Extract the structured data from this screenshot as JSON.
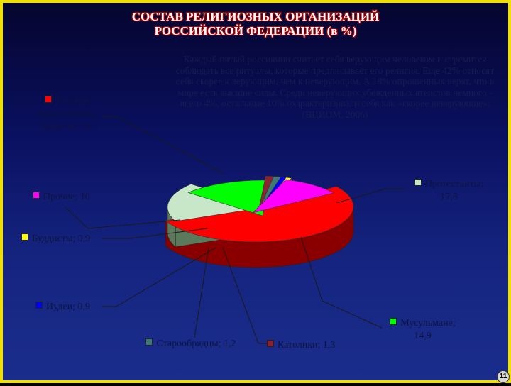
{
  "title": {
    "line1": "СОСТАВ РЕЛИГИОЗНЫХ ОРГАНИЗАЦИЙ",
    "line2": "РОССИЙСКОЙ ФЕДЕРАЦИИ (в %)"
  },
  "note": "Каждый пятый россиянин считает себя верующим человеком и стремится соблюдать все ритуалы, которые предписывает его религия. Еще 42% относят себя скорее к верующим, чем к неверующим. А 18% опрошенных верят, что в мире есть высшие силы. Среди неверующих убежденных атеистов немного - всего 4%, остальные 10% охарактеризовали себя как «скорее неверующие». (ВЦИОМ, 2006)",
  "slide_number": "11",
  "chart_data": {
    "type": "pie",
    "style": "3d exploded",
    "title": "СОСТАВ РЕЛИГИОЗНЫХ ОРГАНИЗАЦИЙ РОССИЙСКОЙ ФЕДЕРАЦИИ (в %)",
    "slices": [
      {
        "label": "Русская Православная Церковь; 53",
        "value": 53,
        "color": "#ff0000",
        "side": "#8a0000"
      },
      {
        "label": "Протестанты; 17,8",
        "value": 17.8,
        "color": "#c8e6c8",
        "side": "#5b7a5b"
      },
      {
        "label": "Мусульмане; 14,9",
        "value": 14.9,
        "color": "#00ff00",
        "side": "#127a12"
      },
      {
        "label": "Католики; 1,3",
        "value": 1.3,
        "color": "#8b2232",
        "side": "#4e1119"
      },
      {
        "label": "Старообрядцы; 1,2",
        "value": 1.2,
        "color": "#3a7a70",
        "side": "#1c4038"
      },
      {
        "label": "Иудеи; 0,9",
        "value": 0.9,
        "color": "#0000ff",
        "side": "#00007a"
      },
      {
        "label": "Буддисты; 0,9",
        "value": 0.9,
        "color": "#ffff00",
        "side": "#8a8a00"
      },
      {
        "label": "Прочие; 10",
        "value": 10,
        "color": "#ff00ff",
        "side": "#7a007a"
      }
    ]
  }
}
